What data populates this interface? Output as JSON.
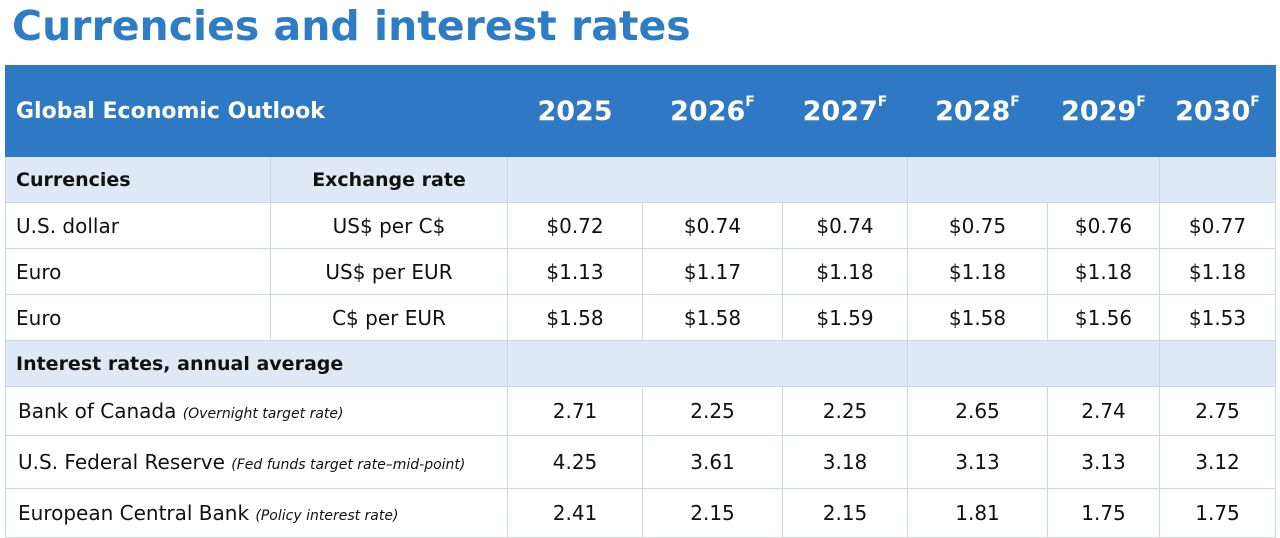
{
  "page": {
    "title": "Currencies and interest rates"
  },
  "table": {
    "header": {
      "label": "Global Economic Outlook",
      "years": [
        {
          "year": "2025",
          "forecast_mark": ""
        },
        {
          "year": "2026",
          "forecast_mark": "F"
        },
        {
          "year": "2027",
          "forecast_mark": "F"
        },
        {
          "year": "2028",
          "forecast_mark": "F"
        },
        {
          "year": "2029",
          "forecast_mark": "F"
        },
        {
          "year": "2030",
          "forecast_mark": "F"
        }
      ]
    },
    "currencies": {
      "section_label": "Currencies",
      "unit_header": "Exchange rate",
      "rows": [
        {
          "name": "U.S. dollar",
          "unit": "US$ per C$",
          "values": [
            "$0.72",
            "$0.74",
            "$0.74",
            "$0.75",
            "$0.76",
            "$0.77"
          ]
        },
        {
          "name": "Euro",
          "unit": "US$ per EUR",
          "values": [
            "$1.13",
            "$1.17",
            "$1.18",
            "$1.18",
            "$1.18",
            "$1.18"
          ]
        },
        {
          "name": "Euro",
          "unit": "C$ per EUR",
          "values": [
            "$1.58",
            "$1.58",
            "$1.59",
            "$1.58",
            "$1.56",
            "$1.53"
          ]
        }
      ]
    },
    "interest": {
      "section_label": "Interest rates, annual average",
      "rows": [
        {
          "name": "Bank of Canada",
          "note": "(Overnight target rate)",
          "values": [
            "2.71",
            "2.25",
            "2.25",
            "2.65",
            "2.74",
            "2.75"
          ]
        },
        {
          "name": "U.S. Federal Reserve",
          "note": "(Fed funds target rate–mid-point)",
          "values": [
            "4.25",
            "3.61",
            "3.18",
            "3.13",
            "3.13",
            "3.12"
          ]
        },
        {
          "name": "European Central Bank",
          "note": "(Policy interest rate)",
          "values": [
            "2.41",
            "2.15",
            "2.15",
            "1.81",
            "1.75",
            "1.75"
          ]
        }
      ]
    }
  }
}
